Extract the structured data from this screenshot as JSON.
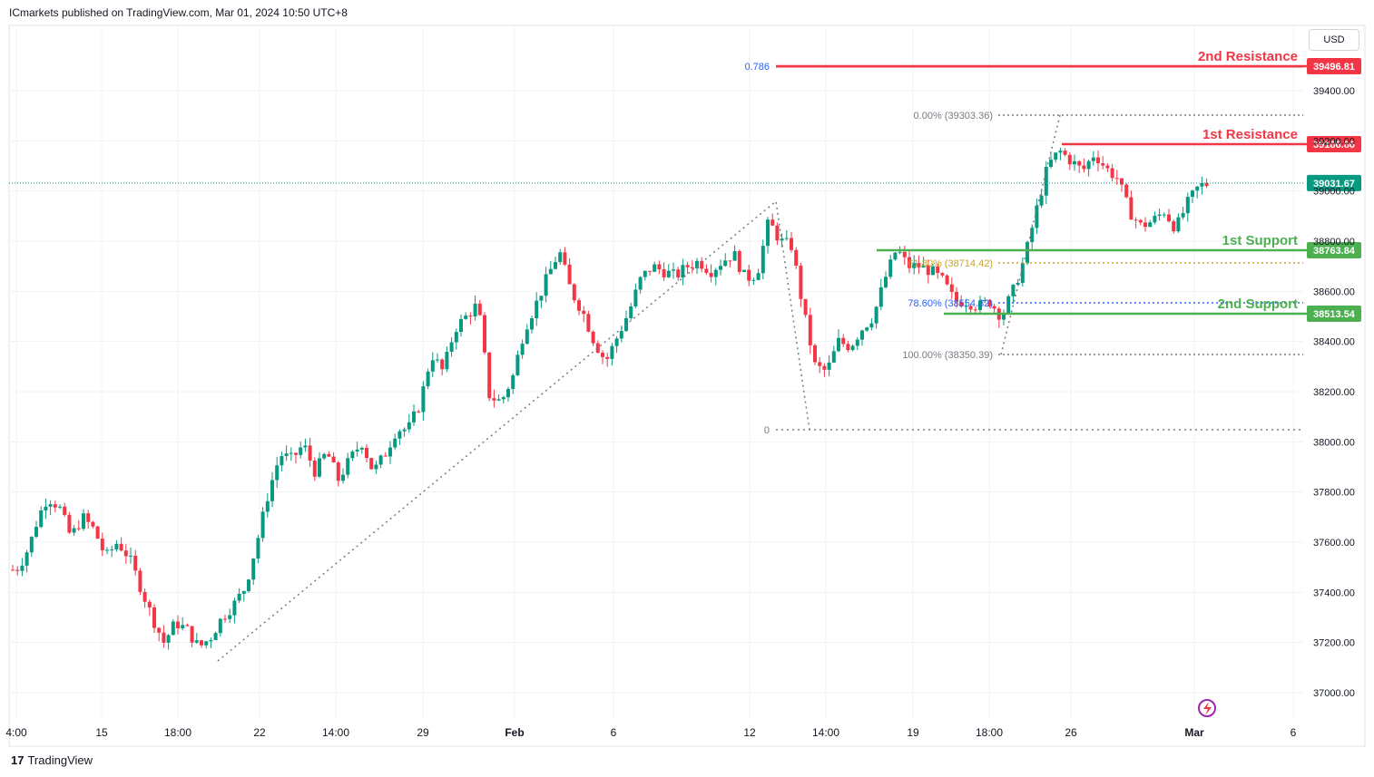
{
  "header": {
    "published": "ICmarkets published on TradingView.com, Mar 01, 2024 10:50 UTC+8"
  },
  "footer": {
    "brand": "TradingView",
    "brand_mark": "17"
  },
  "axis": {
    "currency": "USD"
  },
  "colors": {
    "up": "#089981",
    "down": "#f23645",
    "resistance": "#f23645",
    "support": "#4caf50",
    "grid": "#f0f3fa",
    "fib_dot": "#787b86",
    "fib_gold": "#c9a227",
    "fib_blue": "#2962ff"
  },
  "chart_data": {
    "type": "candlestick",
    "symbol_currency": "USD",
    "y_ticks": [
      37000,
      37200,
      37400,
      37600,
      37800,
      38000,
      38200,
      38400,
      38600,
      38800,
      39000,
      39200,
      39400
    ],
    "y_tick_labels": [
      "37000.00",
      "37200.00",
      "37400.00",
      "37600.00",
      "37800.00",
      "38000.00",
      "38200.00",
      "38400.00",
      "38600.00",
      "38800.00",
      "39000.00",
      "39200.00",
      "39400.00"
    ],
    "x_tick_labels": [
      "4:00",
      "15",
      "18:00",
      "22",
      "14:00",
      "29",
      "Feb",
      "6",
      "12",
      "14:00",
      "19",
      "18:00",
      "26",
      "Mar",
      "6"
    ],
    "levels": [
      {
        "name": "2nd Resistance",
        "value": 39496.81,
        "label": "39496.81",
        "kind": "resistance"
      },
      {
        "name": "1st Resistance",
        "value": 39186.86,
        "label": "39186.86",
        "kind": "resistance"
      },
      {
        "name": "1st Support",
        "value": 38763.84,
        "label": "38763.84",
        "kind": "support"
      },
      {
        "name": "2nd Support",
        "value": 38513.54,
        "label": "38513.54",
        "kind": "support"
      }
    ],
    "last_price": {
      "value": 39031.67,
      "label": "39031.67"
    },
    "fib_left": {
      "level_label_0786": "0.786",
      "level_label_0": "0"
    },
    "fib_right": [
      {
        "label": "0.00% (39303.36)",
        "value": 39303.36
      },
      {
        "label": "61.80% (38714.42)",
        "value": 38714.42
      },
      {
        "label": "78.60% (38554.32)",
        "value": 38554.32
      },
      {
        "label": "100.00% (38350.39)",
        "value": 38350.39
      }
    ],
    "fib_zero_value": 38050,
    "price_path": [
      [
        0,
        37490
      ],
      [
        5,
        37500
      ],
      [
        14,
        37580
      ],
      [
        22,
        37700
      ],
      [
        30,
        37780
      ],
      [
        40,
        37740
      ],
      [
        50,
        37620
      ],
      [
        60,
        37700
      ],
      [
        70,
        37650
      ],
      [
        80,
        37540
      ],
      [
        90,
        37600
      ],
      [
        100,
        37540
      ],
      [
        110,
        37420
      ],
      [
        120,
        37300
      ],
      [
        130,
        37200
      ],
      [
        140,
        37280
      ],
      [
        150,
        37250
      ],
      [
        160,
        37180
      ],
      [
        170,
        37220
      ],
      [
        180,
        37300
      ],
      [
        190,
        37350
      ],
      [
        200,
        37420
      ],
      [
        210,
        37600
      ],
      [
        220,
        37800
      ],
      [
        230,
        37950
      ],
      [
        240,
        37930
      ],
      [
        250,
        37990
      ],
      [
        260,
        37880
      ],
      [
        270,
        37960
      ],
      [
        280,
        37850
      ],
      [
        290,
        37930
      ],
      [
        300,
        38000
      ],
      [
        310,
        37880
      ],
      [
        320,
        37950
      ],
      [
        330,
        38050
      ],
      [
        340,
        38050
      ],
      [
        350,
        38150
      ],
      [
        360,
        38350
      ],
      [
        370,
        38280
      ],
      [
        380,
        38450
      ],
      [
        390,
        38500
      ],
      [
        400,
        38550
      ],
      [
        410,
        38180
      ],
      [
        420,
        38160
      ],
      [
        430,
        38260
      ],
      [
        440,
        38450
      ],
      [
        450,
        38550
      ],
      [
        460,
        38660
      ],
      [
        470,
        38760
      ],
      [
        480,
        38600
      ],
      [
        490,
        38520
      ],
      [
        500,
        38400
      ],
      [
        510,
        38320
      ],
      [
        520,
        38420
      ],
      [
        530,
        38520
      ],
      [
        540,
        38650
      ],
      [
        550,
        38700
      ],
      [
        560,
        38680
      ],
      [
        570,
        38660
      ],
      [
        580,
        38700
      ],
      [
        590,
        38720
      ],
      [
        600,
        38680
      ],
      [
        610,
        38720
      ],
      [
        620,
        38750
      ],
      [
        630,
        38650
      ],
      [
        640,
        38670
      ],
      [
        650,
        38880
      ],
      [
        660,
        38800
      ],
      [
        670,
        38780
      ],
      [
        680,
        38520
      ],
      [
        690,
        38300
      ],
      [
        700,
        38280
      ],
      [
        710,
        38400
      ],
      [
        720,
        38380
      ],
      [
        730,
        38450
      ],
      [
        740,
        38500
      ],
      [
        750,
        38650
      ],
      [
        760,
        38770
      ],
      [
        770,
        38700
      ],
      [
        780,
        38700
      ],
      [
        790,
        38680
      ],
      [
        800,
        38640
      ],
      [
        810,
        38560
      ],
      [
        820,
        38560
      ],
      [
        830,
        38540
      ],
      [
        840,
        38560
      ],
      [
        850,
        38500
      ],
      [
        860,
        38600
      ],
      [
        870,
        38730
      ],
      [
        880,
        38920
      ],
      [
        890,
        39100
      ],
      [
        900,
        39160
      ],
      [
        910,
        39120
      ],
      [
        920,
        39080
      ],
      [
        930,
        39150
      ],
      [
        940,
        39090
      ],
      [
        950,
        39050
      ],
      [
        960,
        38920
      ],
      [
        970,
        38860
      ],
      [
        980,
        38880
      ],
      [
        990,
        38920
      ],
      [
        1000,
        38850
      ],
      [
        1010,
        38950
      ],
      [
        1020,
        39020
      ],
      [
        1030,
        39031
      ]
    ]
  }
}
